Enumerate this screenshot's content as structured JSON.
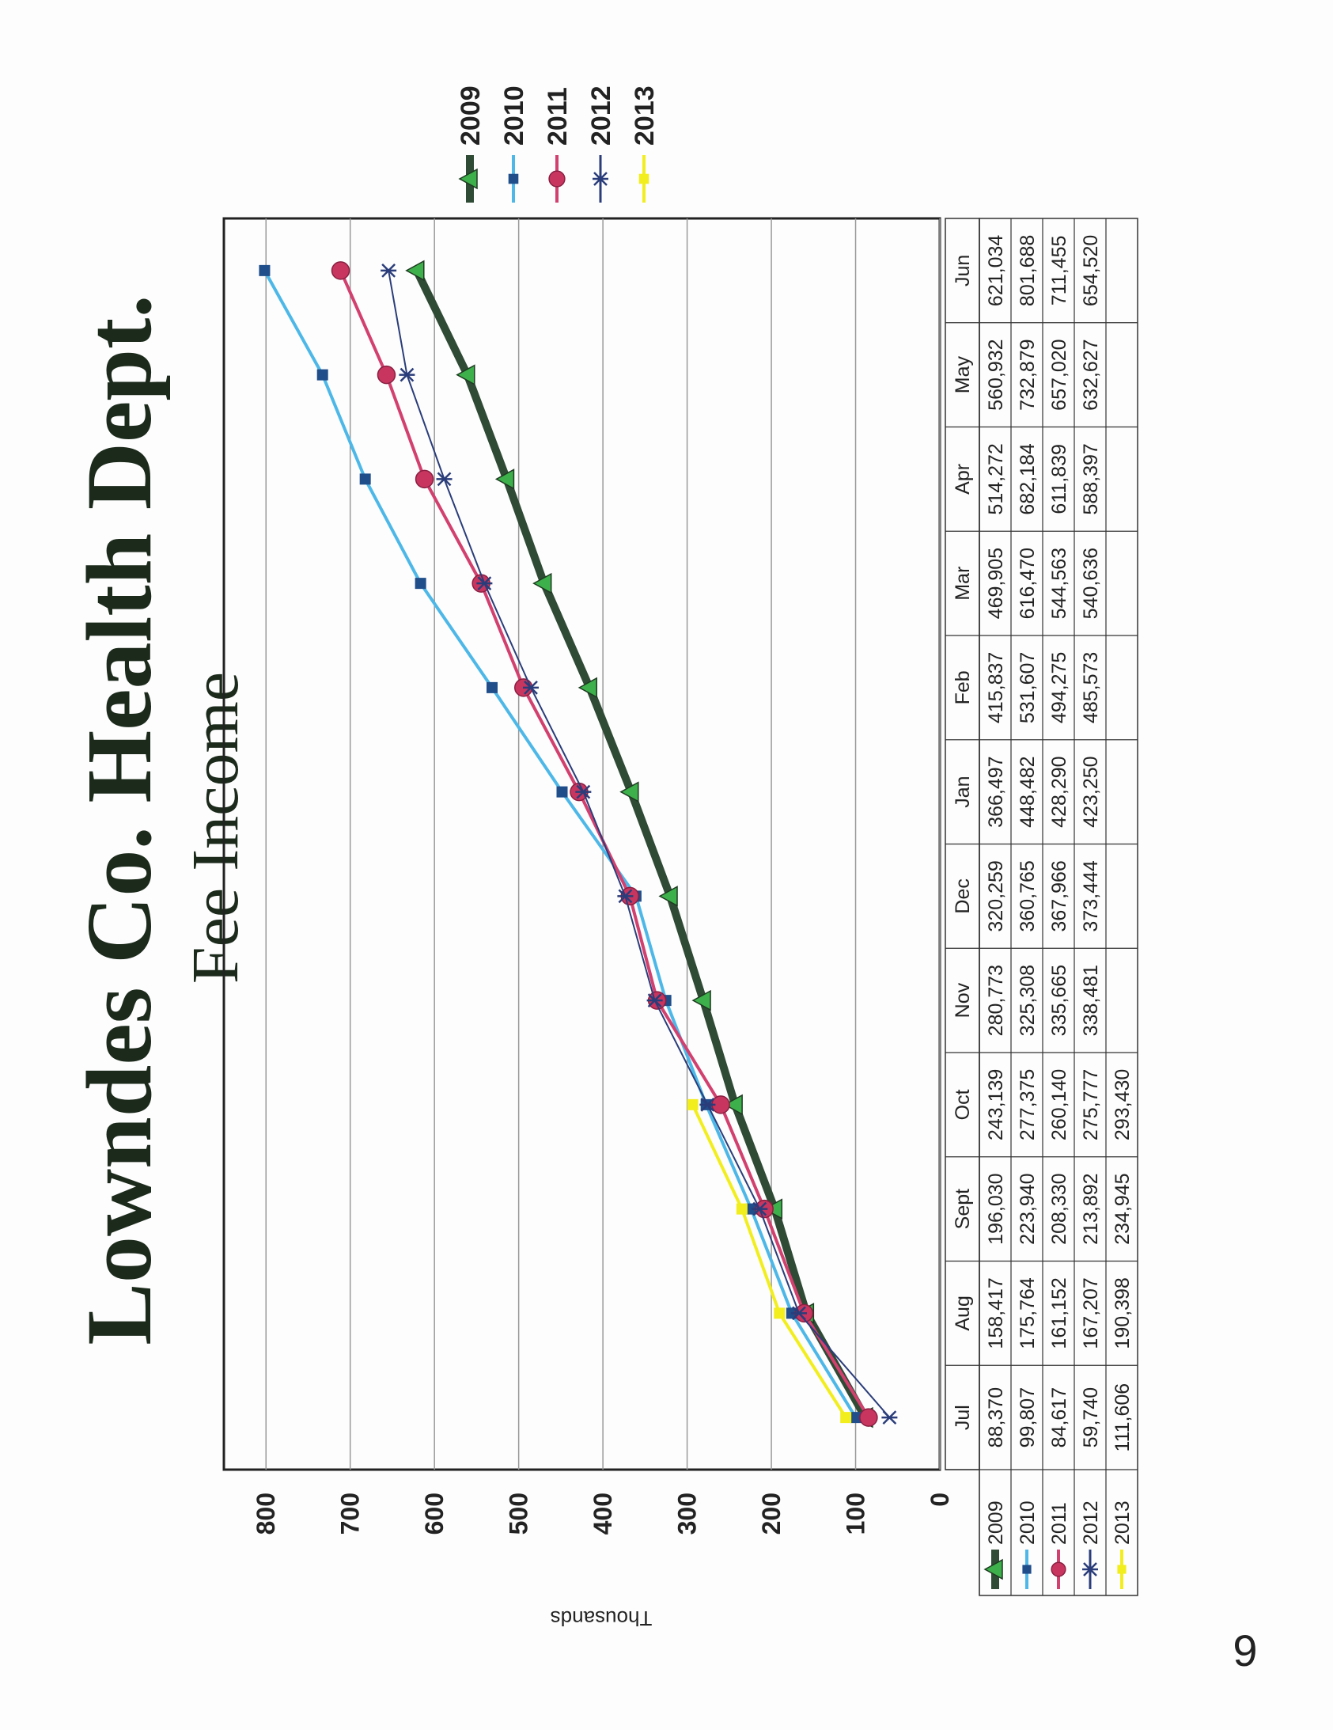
{
  "chart_data": {
    "type": "line",
    "title": "Lowndes Co. Health Dept.",
    "subtitle": "Fee Income",
    "y_label": "Thousands",
    "categories": [
      "Jul",
      "Aug",
      "Sept",
      "Oct",
      "Nov",
      "Dec",
      "Jan",
      "Feb",
      "Mar",
      "Apr",
      "May",
      "Jun"
    ],
    "ylim": [
      0,
      850
    ],
    "yticks": [
      0,
      100,
      200,
      300,
      400,
      500,
      600,
      700,
      800
    ],
    "grid": true,
    "legend": "right",
    "series": [
      {
        "name": "2009",
        "color": "#2f4a35",
        "marker_color": "#3db04b",
        "marker": "triangle",
        "values": [
          88.37,
          158.417,
          196.03,
          243.139,
          280.773,
          320.259,
          366.497,
          415.837,
          469.905,
          514.272,
          560.932,
          621.034
        ],
        "value_labels": [
          "88,370",
          "158,417",
          "196,030",
          "243,139",
          "280,773",
          "320,259",
          "366,497",
          "415,837",
          "469,905",
          "514,272",
          "560,932",
          "621,034"
        ]
      },
      {
        "name": "2010",
        "color": "#4db8e8",
        "marker_color": "#1f4e8a",
        "marker": "square",
        "values": [
          99.807,
          175.764,
          223.94,
          277.375,
          325.308,
          360.765,
          448.482,
          531.607,
          616.47,
          682.184,
          732.879,
          801.688
        ],
        "value_labels": [
          "99,807",
          "175,764",
          "223,940",
          "277,375",
          "325,308",
          "360,765",
          "448,482",
          "531,607",
          "616,470",
          "682,184",
          "732,879",
          "801,688"
        ]
      },
      {
        "name": "2011",
        "color": "#d2406f",
        "marker_color": "#c8365f",
        "marker": "circle",
        "values": [
          84.617,
          161.152,
          208.33,
          260.14,
          335.665,
          367.966,
          428.29,
          494.275,
          544.563,
          611.839,
          657.02,
          711.455
        ],
        "value_labels": [
          "84,617",
          "161,152",
          "208,330",
          "260,140",
          "335,665",
          "367,966",
          "428,290",
          "494,275",
          "544,563",
          "611,839",
          "657,020",
          "711,455"
        ]
      },
      {
        "name": "2012",
        "color": "#2a3d7a",
        "marker_color": "#2a3d7a",
        "marker": "star",
        "values": [
          59.74,
          167.207,
          213.892,
          275.777,
          338.481,
          373.444,
          423.25,
          485.573,
          540.636,
          588.397,
          632.627,
          654.52
        ],
        "value_labels": [
          "59,740",
          "167,207",
          "213,892",
          "275,777",
          "338,481",
          "373,444",
          "423,250",
          "485,573",
          "540,636",
          "588,397",
          "632,627",
          "654,520"
        ]
      },
      {
        "name": "2013",
        "color": "#f2ee1e",
        "marker_color": "#f2ee1e",
        "marker": "square",
        "values": [
          111.606,
          190.398,
          234.945,
          293.43,
          null,
          null,
          null,
          null,
          null,
          null,
          null,
          null
        ],
        "value_labels": [
          "111,606",
          "190,398",
          "234,945",
          "293,430",
          null,
          null,
          null,
          null,
          null,
          null,
          null,
          null
        ]
      }
    ]
  },
  "page_number": "9"
}
